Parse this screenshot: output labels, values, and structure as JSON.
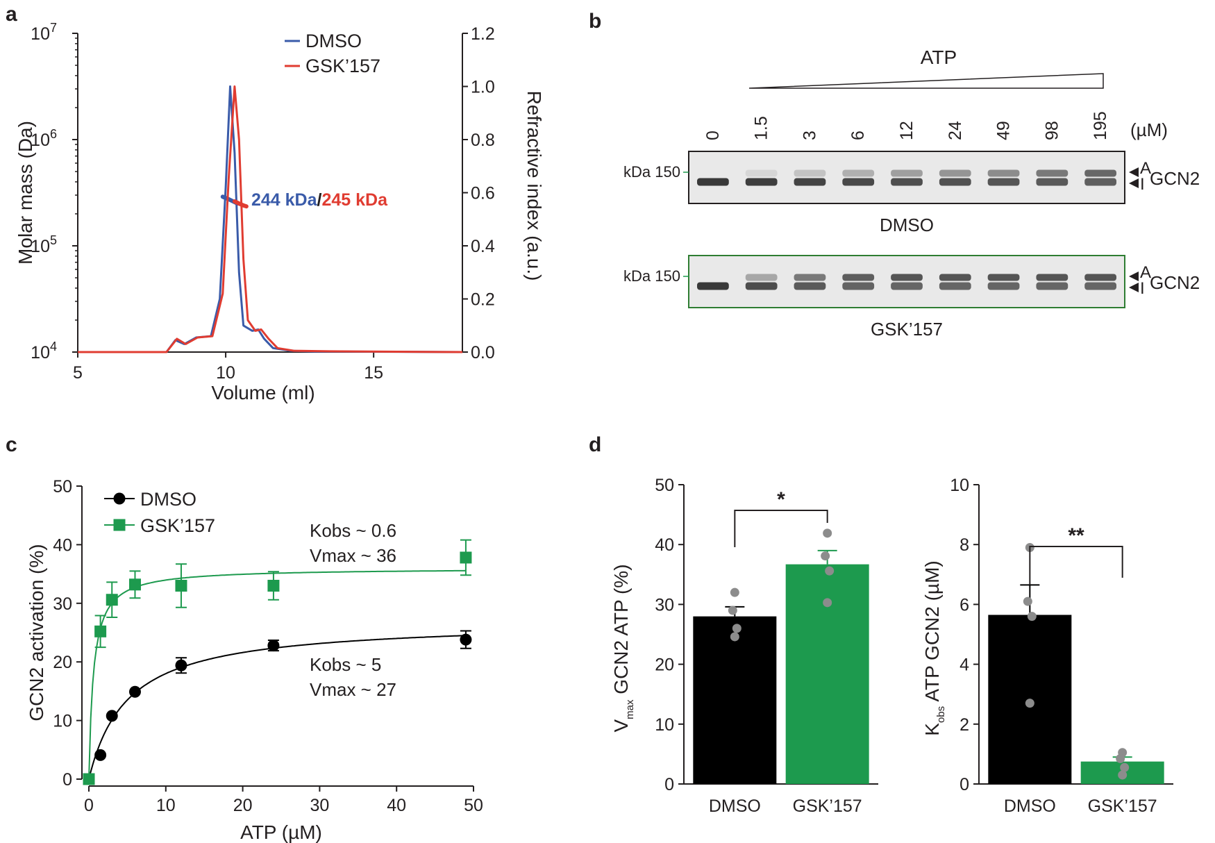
{
  "panels": {
    "a": {
      "label": "a",
      "chart_data": {
        "type": "line",
        "xlabel": "Volume (ml)",
        "ylabel": "Molar mass (Da)",
        "ylabel_right": "Refractive index (a.u.)",
        "xlim": [
          5,
          18
        ],
        "x_ticks": [
          "5",
          "10",
          "15"
        ],
        "y_scale": "log",
        "ylim": [
          10000,
          10000000
        ],
        "y_ticks": [
          {
            "base": "10",
            "exp": "4"
          },
          {
            "base": "10",
            "exp": "5"
          },
          {
            "base": "10",
            "exp": "6"
          },
          {
            "base": "10",
            "exp": "7"
          }
        ],
        "y2lim": [
          0,
          1.2
        ],
        "y2_ticks": [
          "0.0",
          "0.2",
          "0.4",
          "0.6",
          "0.8",
          "1.0",
          "1.2"
        ],
        "series": [
          {
            "name": "DMSO",
            "color": "#3a5ba9",
            "refractive_index": {
              "x": [
                5,
                8,
                8.3,
                8.6,
                9.0,
                9.5,
                9.8,
                10.0,
                10.15,
                10.3,
                10.45,
                10.6,
                10.9,
                11.1,
                11.3,
                11.6,
                12.2,
                13,
                18
              ],
              "y": [
                0,
                0,
                0.045,
                0.03,
                0.055,
                0.06,
                0.2,
                0.62,
                1.0,
                0.75,
                0.3,
                0.1,
                0.08,
                0.085,
                0.05,
                0.015,
                0.005,
                0.002,
                0
              ]
            },
            "molar_mass": {
              "x": [
                9.9,
                10.1,
                10.25,
                10.4
              ],
              "y": [
                290000,
                275000,
                262000,
                250000
              ]
            },
            "annotation": "244 kDa"
          },
          {
            "name": "GSK’157",
            "color": "#e03c31",
            "refractive_index": {
              "x": [
                5,
                8,
                8.35,
                8.65,
                9.05,
                9.55,
                9.9,
                10.1,
                10.3,
                10.45,
                10.6,
                10.75,
                11.0,
                11.2,
                11.45,
                11.75,
                12.3,
                13.5,
                18
              ],
              "y": [
                0,
                0,
                0.05,
                0.03,
                0.055,
                0.06,
                0.22,
                0.65,
                1.0,
                0.8,
                0.35,
                0.12,
                0.08,
                0.085,
                0.05,
                0.015,
                0.005,
                0.003,
                0
              ]
            },
            "molar_mass": {
              "x": [
                10.3,
                10.45,
                10.6,
                10.7
              ],
              "y": [
                262000,
                250000,
                240000,
                235000
              ]
            },
            "annotation": "245 kDa"
          }
        ],
        "annotation_separator": "/"
      }
    },
    "b": {
      "label": "b",
      "ramp_label": "ATP",
      "concentrations": [
        "0",
        "1.5",
        "3",
        "6",
        "12",
        "24",
        "49",
        "98",
        "195"
      ],
      "unit": "(µM)",
      "marker": "kDa 150",
      "band_active": "A",
      "band_inactive": "I",
      "protein": "GCN2",
      "gels": [
        {
          "condition": "DMSO",
          "border": "#231f20",
          "active_band_intensity": [
            0,
            0.1,
            0.2,
            0.3,
            0.4,
            0.45,
            0.5,
            0.6,
            0.7
          ]
        },
        {
          "condition": "GSK’157",
          "border": "#2e7d32",
          "active_band_intensity": [
            0,
            0.35,
            0.6,
            0.75,
            0.8,
            0.8,
            0.8,
            0.8,
            0.8
          ]
        }
      ]
    },
    "c": {
      "label": "c",
      "chart_data": {
        "type": "scatter",
        "xlabel": "ATP (µM)",
        "ylabel": "GCN2 activation (%)",
        "xlim": [
          0,
          50
        ],
        "ylim": [
          0,
          50
        ],
        "x_ticks": [
          "0",
          "10",
          "20",
          "30",
          "40",
          "50"
        ],
        "y_ticks": [
          "0",
          "10",
          "20",
          "30",
          "40",
          "50"
        ],
        "series": [
          {
            "name": "DMSO",
            "color": "#000000",
            "marker": "circle",
            "x": [
              0,
              1.5,
              3,
              6,
              12,
              24,
              49
            ],
            "y": [
              0,
              4.1,
              10.8,
              14.9,
              19.4,
              22.8,
              23.8
            ],
            "err": [
              0,
              0,
              0,
              0,
              1.3,
              0.9,
              1.5
            ],
            "fit": {
              "Kobs": 5,
              "Vmax": 27
            }
          },
          {
            "name": "GSK’157",
            "color": "#1d9a4e",
            "marker": "square",
            "x": [
              0,
              1.5,
              3,
              6,
              12,
              24,
              49
            ],
            "y": [
              0,
              25.2,
              30.6,
              33.2,
              33.0,
              33.0,
              37.8
            ],
            "err": [
              0,
              2.7,
              3.0,
              2.3,
              3.7,
              2.4,
              3.0
            ],
            "fit": {
              "Kobs": 0.6,
              "Vmax": 36
            }
          }
        ],
        "annotations": [
          {
            "line1": "Kobs ~ 0.6",
            "line2": "Vmax ~ 36"
          },
          {
            "line1": "Kobs ~ 5",
            "line2": "Vmax ~ 27"
          }
        ]
      }
    },
    "d": {
      "label": "d",
      "charts": [
        {
          "chart_data": {
            "type": "bar",
            "categories": [
              "DMSO",
              "GSK’157"
            ],
            "values": [
              28.0,
              36.7
            ],
            "err": [
              1.6,
              2.3
            ],
            "colors": [
              "#000000",
              "#1d9a4e"
            ],
            "points": [
              [
                32.0,
                29.0,
                26.0,
                24.6
              ],
              [
                41.9,
                38.1,
                35.6,
                30.3
              ]
            ],
            "ylim": [
              0,
              50
            ],
            "y_ticks": [
              "0",
              "10",
              "20",
              "30",
              "40",
              "50"
            ],
            "ylabel": {
              "main": "V",
              "sub": "max",
              "rest": " GCN2 ATP (%)"
            },
            "significance": "*"
          }
        },
        {
          "chart_data": {
            "type": "bar",
            "categories": [
              "DMSO",
              "GSK’157"
            ],
            "values": [
              5.65,
              0.75
            ],
            "err": [
              1.0,
              0.15
            ],
            "colors": [
              "#000000",
              "#1d9a4e"
            ],
            "points": [
              [
                7.9,
                6.1,
                5.6,
                2.7
              ],
              [
                1.05,
                0.85,
                0.55,
                0.3
              ]
            ],
            "ylim": [
              0,
              10
            ],
            "y_ticks": [
              "0",
              "2",
              "4",
              "6",
              "8",
              "10"
            ],
            "ylabel": {
              "main": "K",
              "sub": "obs",
              "rest": " ATP GCN2 (µM)"
            },
            "significance": "**"
          }
        }
      ]
    }
  }
}
